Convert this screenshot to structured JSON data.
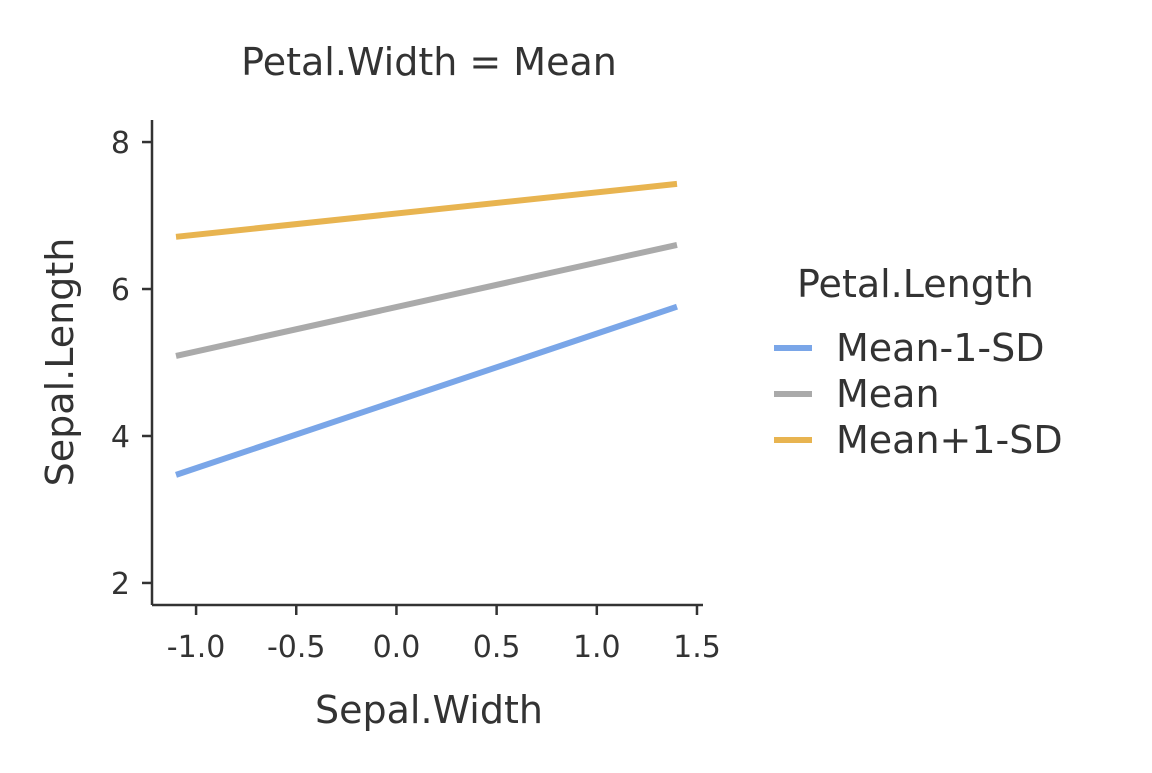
{
  "chart_data": {
    "type": "line",
    "title": "Petal.Width = Mean",
    "xlabel": "Sepal.Width",
    "ylabel": "Sepal.Length",
    "xlim": [
      -1.22,
      1.53
    ],
    "ylim": [
      1.7,
      8.3
    ],
    "xticks": [
      -1.0,
      -0.5,
      0.0,
      0.5,
      1.0,
      1.5
    ],
    "xtick_labels": [
      "-1.0",
      "-0.5",
      "0.0",
      "0.5",
      "1.0",
      "1.5"
    ],
    "yticks": [
      2,
      4,
      6,
      8
    ],
    "ytick_labels": [
      "2",
      "4",
      "6",
      "8"
    ],
    "grid": false,
    "legend": {
      "title": "Petal.Length",
      "placement": "right"
    },
    "series": [
      {
        "name": "Mean-1-SD",
        "color": "#7aa6e8",
        "x": [
          -1.1,
          1.4
        ],
        "y": [
          3.47,
          5.76
        ]
      },
      {
        "name": "Mean",
        "color": "#aaaaaa",
        "x": [
          -1.1,
          1.4
        ],
        "y": [
          5.09,
          6.6
        ]
      },
      {
        "name": "Mean+1-SD",
        "color": "#e8b450",
        "x": [
          -1.1,
          1.4
        ],
        "y": [
          6.71,
          7.43
        ]
      }
    ]
  }
}
